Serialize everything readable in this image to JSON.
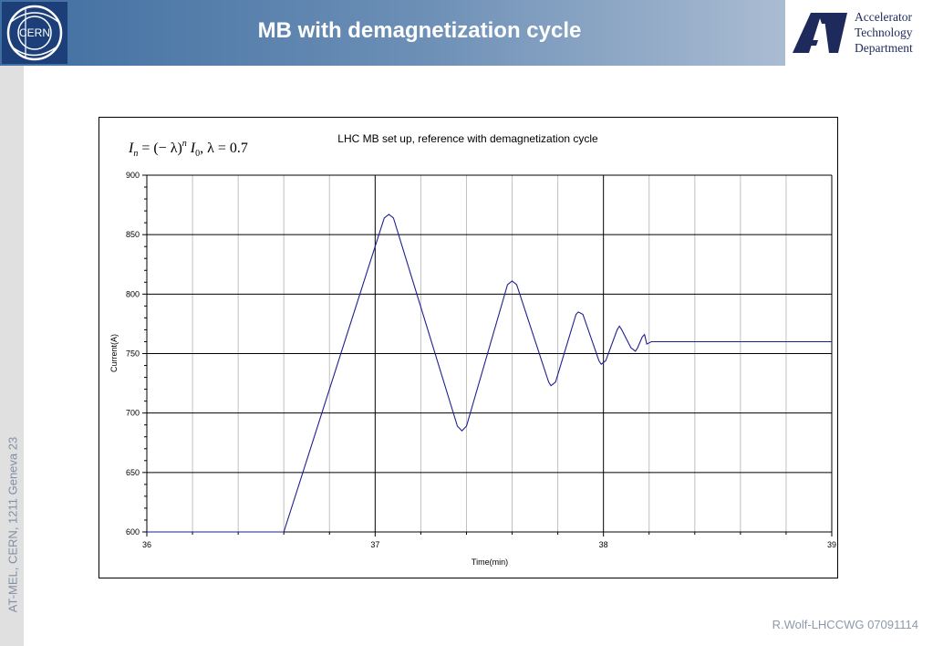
{
  "header": {
    "title": "MB with demagnetization cycle",
    "logo_text": "CERN",
    "department_lines": [
      "Accelerator",
      "Technology",
      "Department"
    ]
  },
  "sidebar": {
    "text": "AT-MEL, CERN, 1211 Geneva 23"
  },
  "footer": {
    "text": "R.Wolf-LHCCWG 07091114"
  },
  "colors": {
    "series": "#1f1f8f",
    "header_dark": "#3f6ea0",
    "logo_blue": "#1c3f7a"
  },
  "chart_data": {
    "type": "line",
    "title": "LHC MB set up, reference with demagnetization cycle",
    "annotation": "I_n = (−λ)^n I_0,  λ = 0.7",
    "xlabel": "Time(min)",
    "ylabel": "Current(A)",
    "xlim": [
      36,
      39
    ],
    "ylim": [
      600,
      900
    ],
    "x_ticks": [
      36,
      37,
      38,
      39
    ],
    "y_ticks": [
      600,
      650,
      700,
      750,
      800,
      850,
      900
    ],
    "grid": true,
    "legend": "none",
    "series": [
      {
        "x": [
          36.0,
          36.6,
          37.04,
          37.06,
          37.08,
          37.36,
          37.38,
          37.4,
          37.58,
          37.6,
          37.62,
          37.76,
          37.77,
          37.79,
          37.88,
          37.89,
          37.91,
          37.98,
          37.99,
          38.01,
          38.06,
          38.07,
          38.08,
          38.12,
          38.14,
          38.15,
          38.17,
          38.18,
          38.19,
          38.21,
          39.0
        ],
        "y": [
          600,
          600,
          864,
          867,
          864,
          689,
          685,
          689,
          808,
          811,
          808,
          726,
          723,
          726,
          783,
          785,
          783,
          744,
          741,
          744,
          770,
          773,
          770,
          755,
          752,
          755,
          764,
          766,
          758,
          760,
          760
        ]
      }
    ]
  }
}
